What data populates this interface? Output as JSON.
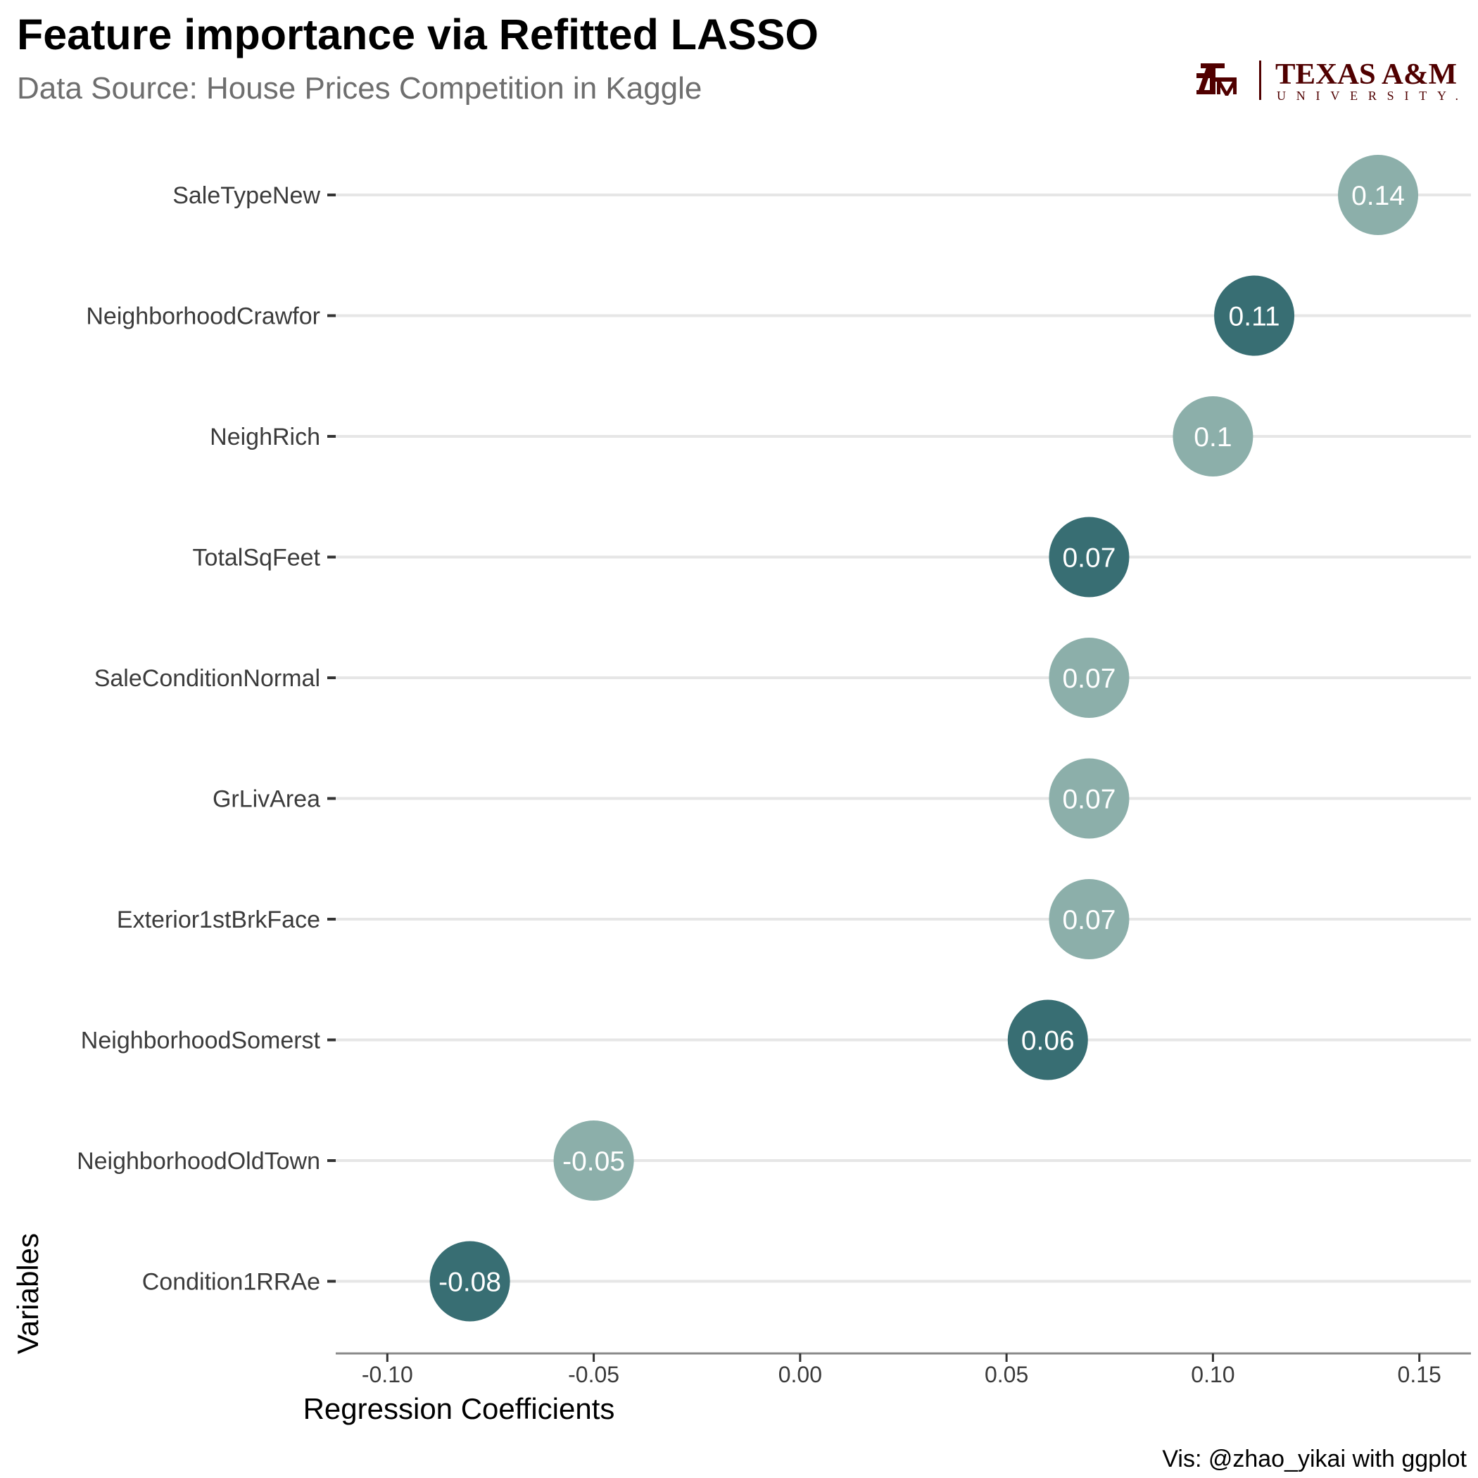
{
  "title": "Feature importance via Refitted LASSO",
  "subtitle": "Data Source: House Prices Competition in Kaggle",
  "caption": "Vis: @zhao_yikai with ggplot",
  "logo": {
    "text_main": "TEXAS A&M",
    "text_sub": "UNIVERSITY.",
    "color": "#500000"
  },
  "colors": {
    "dark_point": "#386e73",
    "light_point": "#8cafaa",
    "gridline": "#e6e6e6",
    "axis_line": "#8a8a8a"
  },
  "chart_data": {
    "type": "scatter",
    "title": "Feature importance via Refitted LASSO",
    "subtitle": "Data Source: House Prices Competition in Kaggle",
    "xlabel": "Regression Coefficients",
    "ylabel": "Variables",
    "xlim": [
      -0.1125,
      0.1625
    ],
    "xticks": [
      -0.1,
      -0.05,
      0.0,
      0.05,
      0.1,
      0.15
    ],
    "xtick_labels": [
      "-0.10",
      "-0.05",
      "0.00",
      "0.05",
      "0.10",
      "0.15"
    ],
    "categories": [
      "SaleTypeNew",
      "NeighborhoodCrawfor",
      "NeighRich",
      "TotalSqFeet",
      "SaleConditionNormal",
      "GrLivArea",
      "Exterior1stBrkFace",
      "NeighborhoodSomerst",
      "NeighborhoodOldTown",
      "Condition1RRAe"
    ],
    "values": [
      0.14,
      0.11,
      0.1,
      0.07,
      0.07,
      0.07,
      0.07,
      0.06,
      -0.05,
      -0.08
    ],
    "labels": [
      "0.14",
      "0.11",
      "0.1",
      "0.07",
      "0.07",
      "0.07",
      "0.07",
      "0.06",
      "-0.05",
      "-0.08"
    ],
    "shade": [
      "light",
      "dark",
      "light",
      "dark",
      "light",
      "light",
      "light",
      "dark",
      "light",
      "dark"
    ],
    "grid": {
      "horizontal": true,
      "vertical": false
    },
    "legend": "none"
  }
}
